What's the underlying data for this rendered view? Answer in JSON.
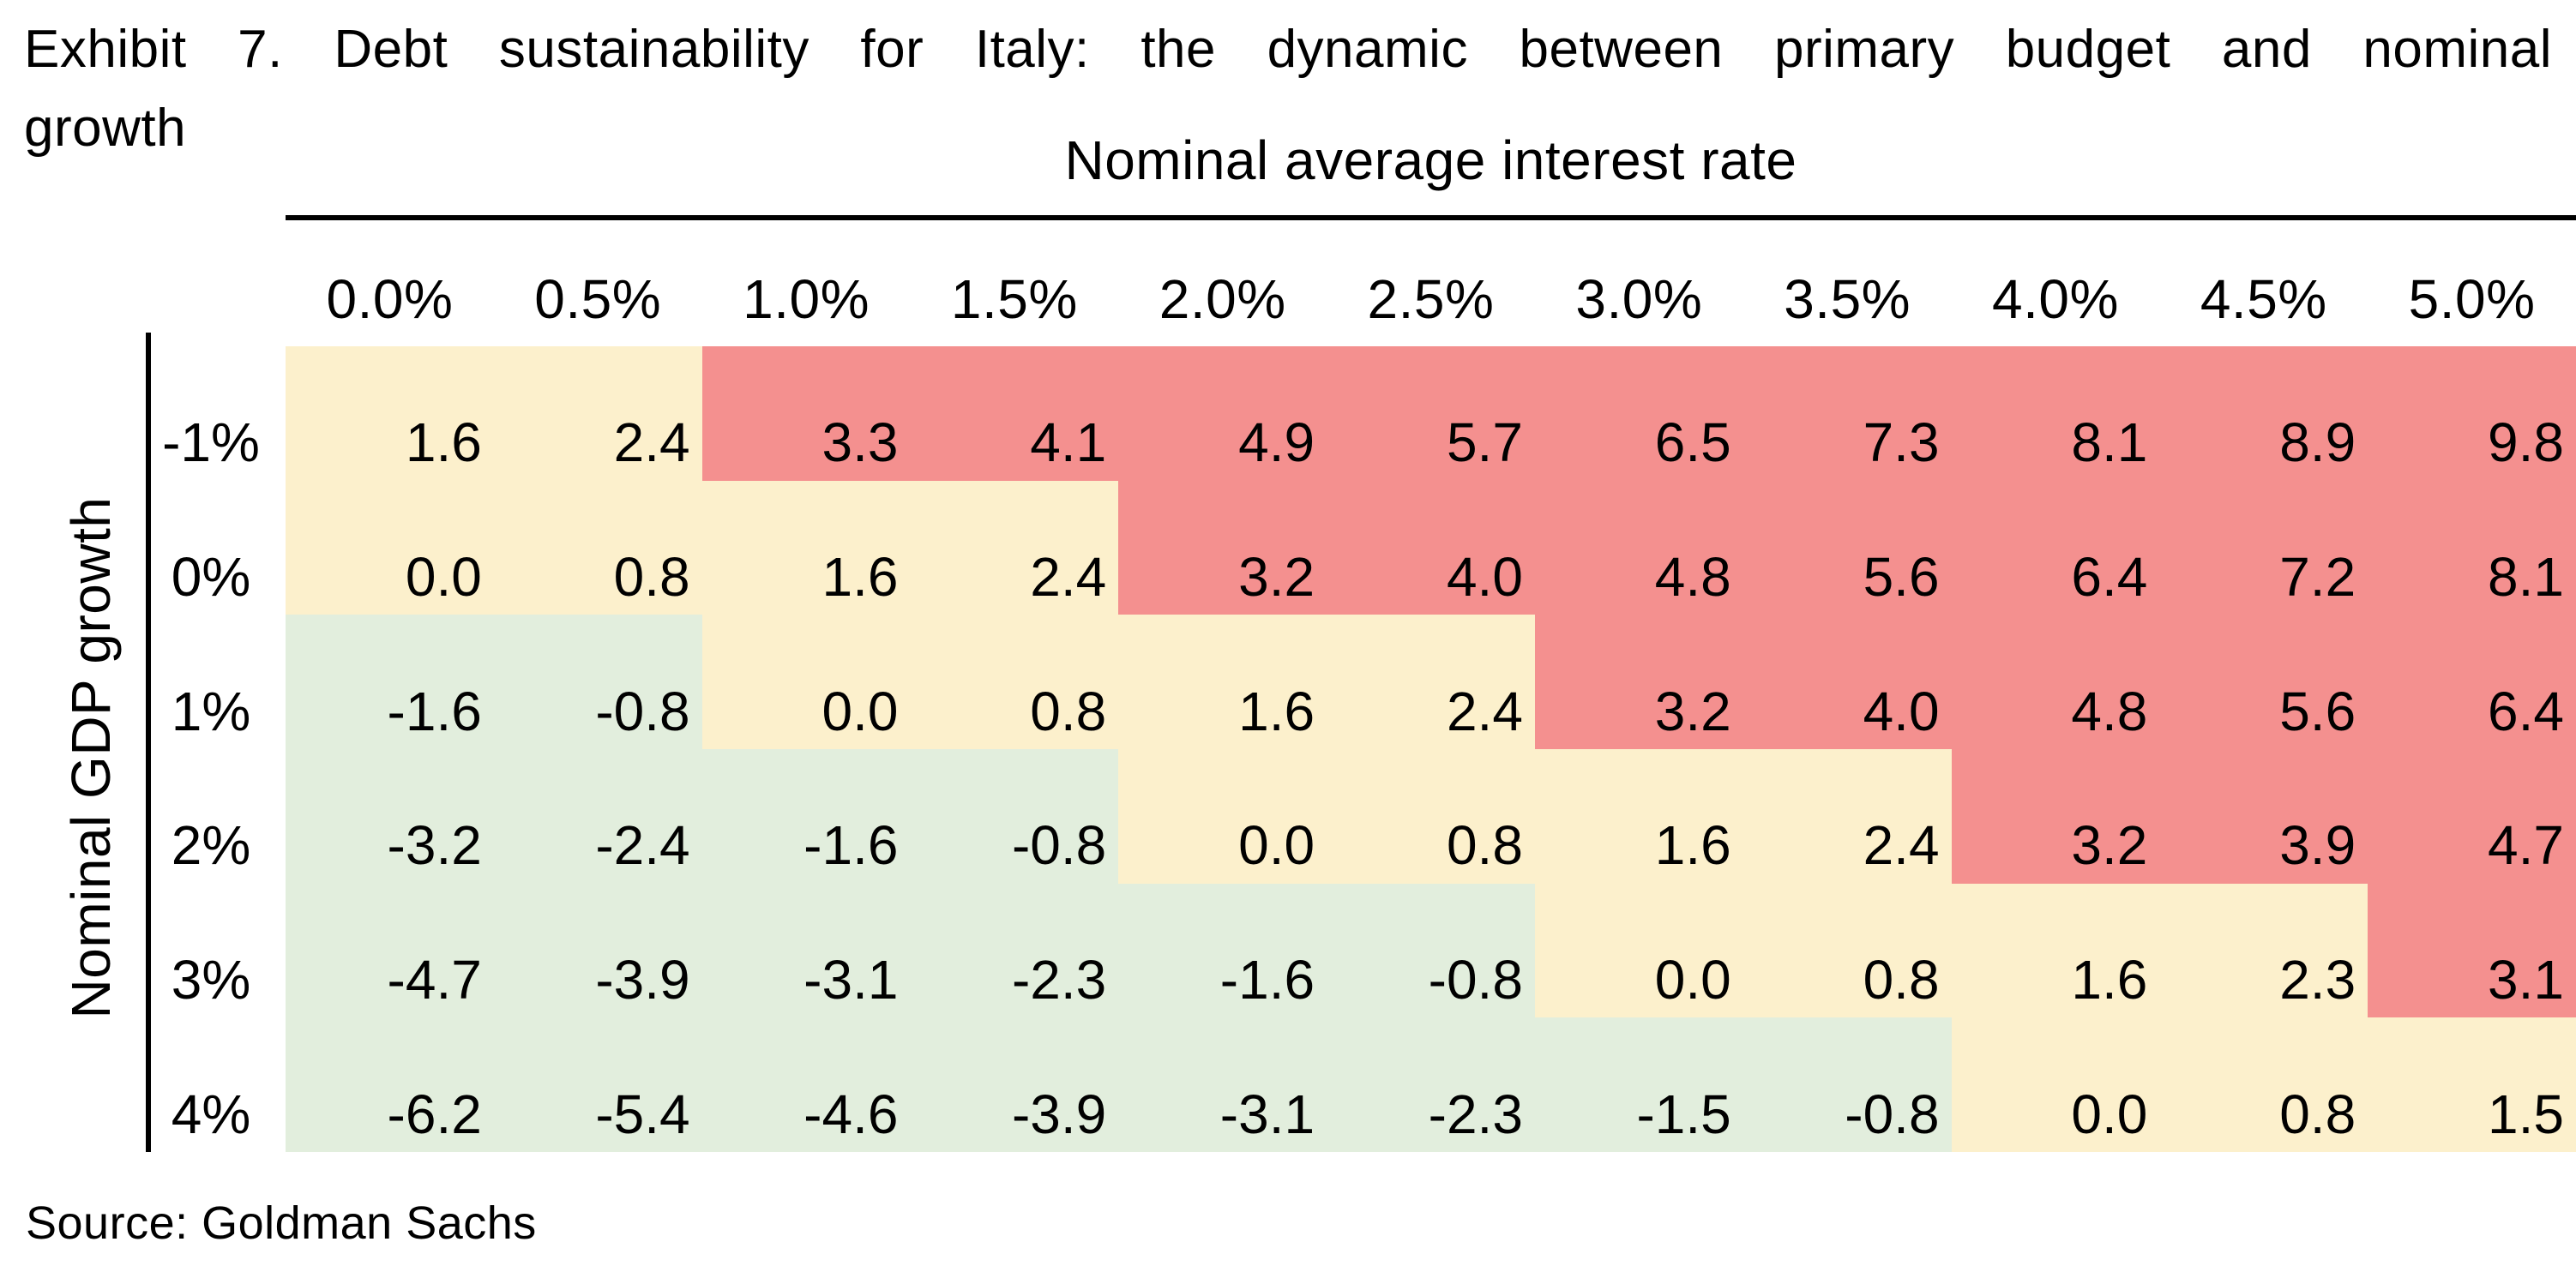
{
  "title": {
    "line1": "Exhibit 7. Debt sustainability for Italy: the dynamic between primary budget and nominal",
    "line2": "growth"
  },
  "source": "Source: Goldman Sachs",
  "chart_data": {
    "type": "heatmap",
    "title": "Exhibit 7. Debt sustainability for Italy: the dynamic between primary budget and nominal growth",
    "x_axis_label": "Nominal average interest rate",
    "y_axis_label": "Nominal GDP growth",
    "x_categories": [
      "0.0%",
      "0.5%",
      "1.0%",
      "1.5%",
      "2.0%",
      "2.5%",
      "3.0%",
      "3.5%",
      "4.0%",
      "4.5%",
      "5.0%"
    ],
    "y_categories": [
      "-1%",
      "0%",
      "1%",
      "2%",
      "3%",
      "4%"
    ],
    "values": [
      [
        1.6,
        2.4,
        3.3,
        4.1,
        4.9,
        5.7,
        6.5,
        7.3,
        8.1,
        8.9,
        9.8
      ],
      [
        0.0,
        0.8,
        1.6,
        2.4,
        3.2,
        4.0,
        4.8,
        5.6,
        6.4,
        7.2,
        8.1
      ],
      [
        -1.6,
        -0.8,
        0.0,
        0.8,
        1.6,
        2.4,
        3.2,
        4.0,
        4.8,
        5.6,
        6.4
      ],
      [
        -3.2,
        -2.4,
        -1.6,
        -0.8,
        0.0,
        0.8,
        1.6,
        2.4,
        3.2,
        3.9,
        4.7
      ],
      [
        -4.7,
        -3.9,
        -3.1,
        -2.3,
        -1.6,
        -0.8,
        0.0,
        0.8,
        1.6,
        2.3,
        3.1
      ],
      [
        -6.2,
        -5.4,
        -4.6,
        -3.9,
        -3.1,
        -2.3,
        -1.5,
        -0.8,
        0.0,
        0.8,
        1.5
      ]
    ],
    "value_format": "one_decimal",
    "cell_colors": [
      [
        "yellow",
        "yellow",
        "red",
        "red",
        "red",
        "red",
        "red",
        "red",
        "red",
        "red",
        "red"
      ],
      [
        "yellow",
        "yellow",
        "yellow",
        "yellow",
        "red",
        "red",
        "red",
        "red",
        "red",
        "red",
        "red"
      ],
      [
        "green",
        "green",
        "yellow",
        "yellow",
        "yellow",
        "yellow",
        "red",
        "red",
        "red",
        "red",
        "red"
      ],
      [
        "green",
        "green",
        "green",
        "green",
        "yellow",
        "yellow",
        "yellow",
        "yellow",
        "red",
        "red",
        "red"
      ],
      [
        "green",
        "green",
        "green",
        "green",
        "green",
        "green",
        "yellow",
        "yellow",
        "yellow",
        "yellow",
        "red"
      ],
      [
        "green",
        "green",
        "green",
        "green",
        "green",
        "green",
        "green",
        "green",
        "yellow",
        "yellow",
        "yellow"
      ]
    ],
    "color_map": {
      "green": "#e2eedd",
      "yellow": "#fcf0cc",
      "red": "#f4908f"
    },
    "text_color": "#000000",
    "grid": false,
    "legend": "none"
  }
}
